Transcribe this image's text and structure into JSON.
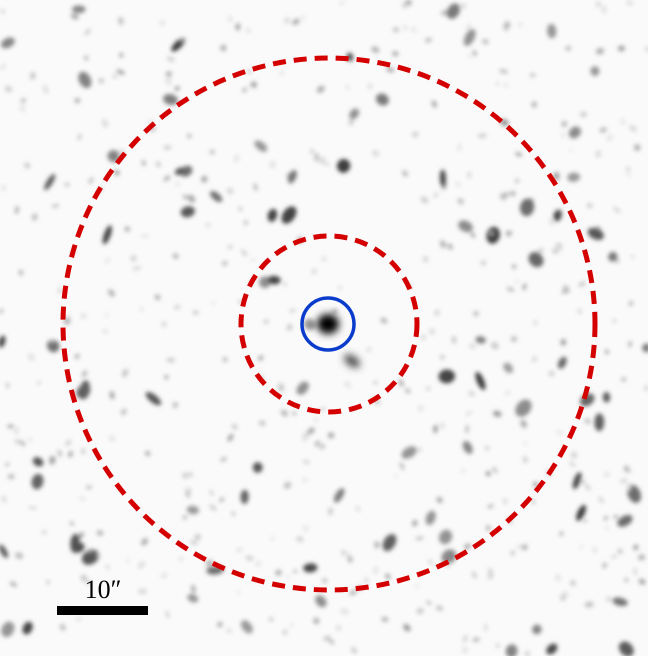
{
  "scale_bar": {
    "label": "10″"
  }
}
